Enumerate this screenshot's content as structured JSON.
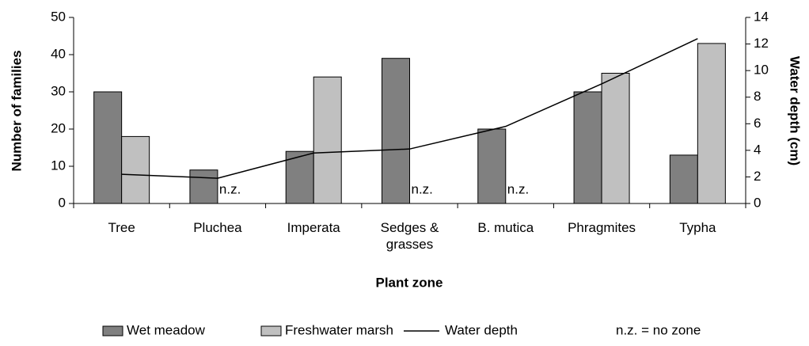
{
  "chart_data": {
    "type": "bar",
    "categories": [
      "Tree",
      "Pluchea",
      "Imperata",
      "Sedges & grasses",
      "B. mutica",
      "Phragmites",
      "Typha"
    ],
    "series": [
      {
        "name": "Wet meadow",
        "color": "#808080",
        "values": [
          30,
          9,
          14,
          39,
          20,
          30,
          13
        ]
      },
      {
        "name": "Freshwater marsh",
        "color": "#c0c0c0",
        "values": [
          18,
          null,
          34,
          null,
          null,
          35,
          43
        ]
      },
      {
        "name": "Water depth",
        "color": "#000000",
        "type": "line",
        "axis": "y2",
        "values": [
          2.2,
          1.9,
          3.8,
          4.1,
          5.8,
          9.0,
          12.4
        ]
      }
    ],
    "ylim": [
      0,
      50
    ],
    "yticks": [
      0,
      10,
      20,
      30,
      40,
      50
    ],
    "y2lim": [
      0,
      14
    ],
    "y2ticks": [
      0,
      2,
      4,
      6,
      8,
      10,
      12,
      14
    ],
    "ylabel": "Number of families",
    "y2label": "Water depth (cm)",
    "xlabel": "Plant zone",
    "annotations": [
      {
        "text": "n.z.",
        "category": "Pluchea"
      },
      {
        "text": "n.z.",
        "category": "Sedges & grasses"
      },
      {
        "text": "n.z.",
        "category": "B. mutica"
      }
    ],
    "note": "n.z. = no zone"
  }
}
